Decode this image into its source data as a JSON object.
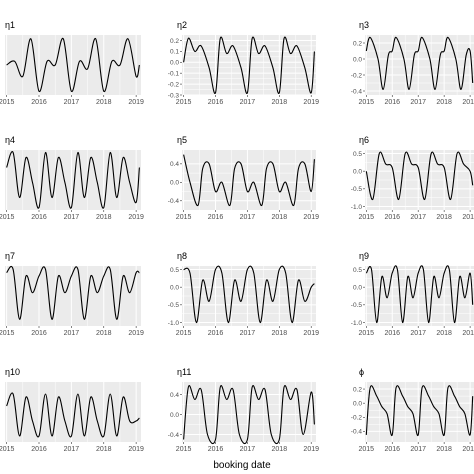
{
  "figure": {
    "xlabel": "booking date",
    "x_ticks": [
      "2015",
      "2016",
      "2017",
      "2018",
      "2019"
    ]
  },
  "colors": {
    "panel_bg": "#ebebeb",
    "grid": "#ffffff",
    "line": "#000000",
    "text": "#4d4d4d"
  },
  "chart_data": [
    {
      "type": "line",
      "title": "η1",
      "ylim": [
        -0.35,
        0.45
      ],
      "yticks": [],
      "grid": true,
      "x": [
        2015.0,
        2015.25,
        2015.5,
        2015.75,
        2016.0,
        2016.25,
        2016.5,
        2016.75,
        2017.0,
        2017.25,
        2017.5,
        2017.75,
        2018.0,
        2018.25,
        2018.5,
        2018.75,
        2019.0,
        2019.1
      ],
      "y": [
        0.05,
        0.1,
        -0.1,
        0.4,
        -0.3,
        0.1,
        0.05,
        0.4,
        -0.3,
        0.1,
        0.0,
        0.4,
        -0.3,
        0.1,
        0.05,
        0.4,
        -0.1,
        0.05
      ]
    },
    {
      "type": "line",
      "title": "η2",
      "ylim": [
        -0.3,
        0.25
      ],
      "yticks": [
        0.2,
        0.1,
        0.0,
        -0.1,
        -0.2,
        -0.3
      ],
      "grid": true,
      "x": [
        2015.0,
        2015.15,
        2015.35,
        2015.55,
        2015.8,
        2016.0,
        2016.15,
        2016.35,
        2016.55,
        2016.8,
        2017.0,
        2017.15,
        2017.35,
        2017.55,
        2017.8,
        2018.0,
        2018.15,
        2018.35,
        2018.55,
        2018.8,
        2019.0,
        2019.1
      ],
      "y": [
        0.0,
        0.22,
        0.1,
        0.15,
        -0.05,
        -0.28,
        0.22,
        0.08,
        0.15,
        -0.05,
        -0.28,
        0.22,
        0.08,
        0.15,
        -0.05,
        -0.28,
        0.22,
        0.08,
        0.15,
        -0.05,
        -0.28,
        0.1
      ]
    },
    {
      "type": "line",
      "title": "η3",
      "ylim": [
        -0.45,
        0.3
      ],
      "yticks": [
        0.2,
        0.0,
        -0.2,
        -0.4
      ],
      "grid": true,
      "x": [
        2015.0,
        2015.15,
        2015.45,
        2015.65,
        2015.85,
        2016.0,
        2016.15,
        2016.45,
        2016.65,
        2016.85,
        2017.0,
        2017.15,
        2017.45,
        2017.65,
        2017.85,
        2018.0,
        2018.15,
        2018.45,
        2018.65,
        2018.85,
        2019.0,
        2019.1
      ],
      "y": [
        0.1,
        0.27,
        0.0,
        -0.38,
        0.05,
        0.1,
        0.27,
        0.0,
        -0.38,
        0.05,
        0.1,
        0.27,
        0.0,
        -0.38,
        0.05,
        0.1,
        0.27,
        0.0,
        -0.38,
        0.05,
        0.1,
        -0.3
      ]
    },
    {
      "type": "line",
      "title": "η4",
      "ylim": [
        -0.55,
        0.65
      ],
      "yticks": [],
      "grid": true,
      "x": [
        2015.0,
        2015.2,
        2015.4,
        2015.6,
        2015.8,
        2016.0,
        2016.2,
        2016.4,
        2016.6,
        2016.8,
        2017.0,
        2017.2,
        2017.4,
        2017.6,
        2017.8,
        2018.0,
        2018.2,
        2018.4,
        2018.6,
        2018.8,
        2019.0,
        2019.1
      ],
      "y": [
        0.3,
        0.6,
        -0.3,
        0.5,
        0.0,
        -0.5,
        0.6,
        -0.3,
        0.5,
        0.0,
        -0.5,
        0.6,
        -0.3,
        0.5,
        0.0,
        -0.5,
        0.6,
        -0.3,
        0.5,
        0.0,
        -0.4,
        0.3
      ]
    },
    {
      "type": "line",
      "title": "η5",
      "ylim": [
        -0.6,
        0.7
      ],
      "yticks": [
        0.4,
        0.0,
        -0.4
      ],
      "grid": true,
      "x": [
        2015.0,
        2015.2,
        2015.45,
        2015.6,
        2015.8,
        2016.0,
        2016.2,
        2016.45,
        2016.6,
        2016.8,
        2017.0,
        2017.2,
        2017.45,
        2017.6,
        2017.8,
        2018.0,
        2018.2,
        2018.45,
        2018.6,
        2018.8,
        2019.0,
        2019.1
      ],
      "y": [
        0.6,
        0.0,
        -0.5,
        0.3,
        0.4,
        -0.2,
        0.0,
        -0.5,
        0.3,
        0.4,
        -0.2,
        0.0,
        -0.5,
        0.3,
        0.4,
        -0.2,
        0.0,
        -0.5,
        0.3,
        0.4,
        -0.2,
        0.5
      ]
    },
    {
      "type": "line",
      "title": "η6",
      "ylim": [
        -1.1,
        0.6
      ],
      "yticks": [
        0.5,
        0.0,
        -0.5,
        -1.0
      ],
      "grid": true,
      "x": [
        2015.0,
        2015.25,
        2015.5,
        2015.75,
        2016.0,
        2016.25,
        2016.5,
        2016.75,
        2017.0,
        2017.25,
        2017.5,
        2017.75,
        2018.0,
        2018.25,
        2018.5,
        2018.75,
        2019.0,
        2019.1
      ],
      "y": [
        0.0,
        -0.8,
        0.5,
        0.2,
        0.1,
        -0.8,
        0.5,
        0.2,
        0.1,
        -0.8,
        0.5,
        0.2,
        0.1,
        -0.8,
        0.5,
        0.2,
        0.0,
        -0.4
      ]
    },
    {
      "type": "line",
      "title": "η7",
      "ylim": [
        -1.2,
        0.6
      ],
      "yticks": [],
      "grid": true,
      "x": [
        2015.0,
        2015.2,
        2015.4,
        2015.6,
        2015.8,
        2016.0,
        2016.2,
        2016.4,
        2016.6,
        2016.8,
        2017.0,
        2017.2,
        2017.4,
        2017.6,
        2017.8,
        2018.0,
        2018.2,
        2018.4,
        2018.6,
        2018.8,
        2019.0,
        2019.1
      ],
      "y": [
        0.4,
        0.5,
        -1.0,
        0.3,
        -0.2,
        0.3,
        0.5,
        -1.0,
        0.3,
        -0.2,
        0.3,
        0.5,
        -1.0,
        0.3,
        -0.2,
        0.3,
        0.5,
        -1.0,
        0.3,
        -0.2,
        0.4,
        0.4
      ]
    },
    {
      "type": "line",
      "title": "η8",
      "ylim": [
        -1.1,
        0.6
      ],
      "yticks": [
        0.5,
        0.0,
        -0.5,
        -1.0
      ],
      "grid": true,
      "x": [
        2015.0,
        2015.2,
        2015.4,
        2015.6,
        2015.8,
        2016.0,
        2016.2,
        2016.4,
        2016.6,
        2016.8,
        2017.0,
        2017.2,
        2017.4,
        2017.6,
        2017.8,
        2018.0,
        2018.2,
        2018.4,
        2018.6,
        2018.8,
        2019.0,
        2019.1
      ],
      "y": [
        0.5,
        0.4,
        -1.0,
        0.2,
        -0.4,
        0.5,
        0.4,
        -1.0,
        0.2,
        -0.4,
        0.5,
        0.4,
        -1.0,
        0.2,
        -0.4,
        0.5,
        0.4,
        -1.0,
        0.2,
        -0.4,
        0.0,
        0.1
      ]
    },
    {
      "type": "line",
      "title": "η9",
      "ylim": [
        -1.1,
        0.6
      ],
      "yticks": [
        0.5,
        0.0,
        -0.5,
        -1.0
      ],
      "grid": true,
      "x": [
        2015.0,
        2015.2,
        2015.4,
        2015.6,
        2015.8,
        2016.0,
        2016.2,
        2016.4,
        2016.6,
        2016.8,
        2017.0,
        2017.2,
        2017.4,
        2017.6,
        2017.8,
        2018.0,
        2018.2,
        2018.4,
        2018.6,
        2018.8,
        2019.0,
        2019.1
      ],
      "y": [
        0.4,
        0.5,
        -1.0,
        0.3,
        -0.3,
        0.4,
        0.5,
        -1.0,
        0.3,
        -0.3,
        0.4,
        0.5,
        -1.0,
        0.3,
        -0.3,
        0.4,
        0.5,
        -1.0,
        0.3,
        -0.3,
        0.4,
        -0.5
      ]
    },
    {
      "type": "line",
      "title": "η10",
      "ylim": [
        -1.0,
        1.0
      ],
      "yticks": [],
      "grid": true,
      "x": [
        2015.0,
        2015.2,
        2015.4,
        2015.6,
        2015.8,
        2016.0,
        2016.2,
        2016.4,
        2016.6,
        2016.8,
        2017.0,
        2017.2,
        2017.4,
        2017.6,
        2017.8,
        2018.0,
        2018.2,
        2018.4,
        2018.6,
        2018.8,
        2019.0,
        2019.1
      ],
      "y": [
        0.2,
        0.6,
        -0.8,
        0.5,
        -0.3,
        -0.8,
        0.6,
        -0.8,
        0.5,
        -0.3,
        -0.8,
        0.6,
        -0.8,
        0.5,
        -0.3,
        -0.8,
        0.6,
        -0.8,
        0.5,
        -0.3,
        -0.3,
        -0.2
      ]
    },
    {
      "type": "line",
      "title": "η11",
      "ylim": [
        -0.55,
        0.65
      ],
      "yticks": [
        0.4,
        0.0,
        -0.4
      ],
      "grid": true,
      "x": [
        2015.0,
        2015.15,
        2015.35,
        2015.55,
        2015.75,
        2016.0,
        2016.15,
        2016.35,
        2016.55,
        2016.75,
        2017.0,
        2017.15,
        2017.35,
        2017.55,
        2017.75,
        2018.0,
        2018.15,
        2018.35,
        2018.55,
        2018.75,
        2019.0,
        2019.1
      ],
      "y": [
        -0.5,
        0.55,
        0.3,
        0.5,
        -0.4,
        -0.5,
        0.55,
        0.3,
        0.5,
        -0.4,
        -0.5,
        0.55,
        0.3,
        0.5,
        -0.4,
        -0.5,
        0.55,
        0.3,
        0.5,
        -0.4,
        0.45,
        -0.2
      ]
    },
    {
      "type": "line",
      "title": "ϕ",
      "ylim": [
        -0.55,
        0.3
      ],
      "yticks": [
        0.2,
        0.0,
        -0.2,
        -0.4
      ],
      "grid": true,
      "x": [
        2015.0,
        2015.15,
        2015.4,
        2015.6,
        2015.8,
        2016.0,
        2016.15,
        2016.4,
        2016.6,
        2016.8,
        2017.0,
        2017.15,
        2017.4,
        2017.6,
        2017.8,
        2018.0,
        2018.15,
        2018.4,
        2018.6,
        2018.8,
        2019.0,
        2019.1
      ],
      "y": [
        -0.45,
        0.22,
        0.1,
        -0.05,
        -0.15,
        -0.45,
        0.22,
        0.1,
        -0.05,
        -0.15,
        -0.45,
        0.22,
        0.1,
        -0.05,
        -0.15,
        -0.45,
        0.22,
        0.1,
        -0.05,
        -0.15,
        -0.45,
        0.1
      ]
    }
  ]
}
